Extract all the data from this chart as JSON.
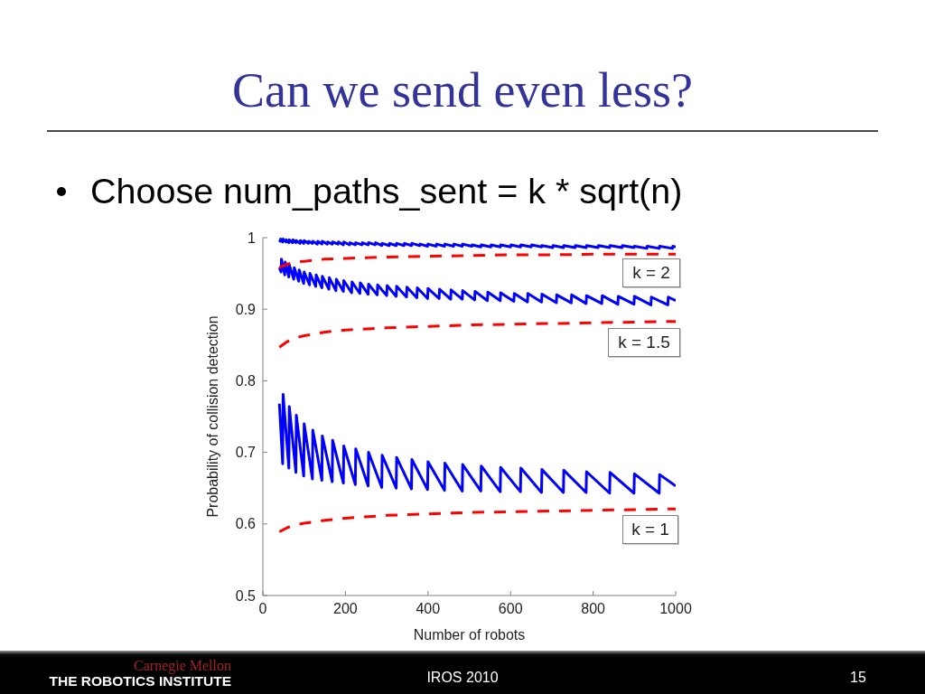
{
  "chart_data": {
    "type": "line",
    "title": "Can we send even less?",
    "subtitle": "Choose num_paths_sent = k * sqrt(n)",
    "xlabel": "Number of robots",
    "ylabel": "Probability of collision detection",
    "xlim": [
      0,
      1000
    ],
    "xticks": [
      0,
      200,
      400,
      600,
      800,
      1000
    ],
    "ylim": [
      0.5,
      1
    ],
    "yticks": [
      0.5,
      0.6,
      0.7,
      0.8,
      0.9,
      1
    ],
    "line_style": "solid",
    "series": [
      {
        "color": "#0000ff",
        "x": [
          40,
          42,
          43,
          48,
          49,
          56,
          57,
          63,
          64,
          72,
          73,
          80,
          81,
          90,
          91,
          99,
          100,
          110,
          111,
          120,
          121,
          132,
          133,
          143,
          144,
          156,
          157,
          168,
          169,
          182,
          183,
          195,
          196,
          210,
          211,
          224,
          225,
          240,
          241,
          255,
          256,
          272,
          273,
          288,
          289,
          306,
          307,
          323,
          324,
          342,
          343,
          360,
          361,
          380,
          381,
          399,
          400,
          420,
          421,
          440,
          441,
          462,
          463,
          483,
          484,
          506,
          507,
          528,
          529,
          552,
          553,
          575,
          576,
          600,
          601,
          624,
          625,
          650,
          651,
          675,
          676,
          702,
          703,
          728,
          729,
          756,
          757,
          783,
          784,
          812,
          813,
          840,
          841,
          870,
          871,
          899,
          900,
          930,
          931,
          960,
          961,
          992,
          993,
          1000
        ],
        "values": [
          0.997,
          0.995,
          0.998,
          0.994,
          0.998,
          0.994,
          0.997,
          0.993,
          0.997,
          0.993,
          0.997,
          0.993,
          0.996,
          0.992,
          0.996,
          0.992,
          0.996,
          0.992,
          0.995,
          0.992,
          0.995,
          0.991,
          0.995,
          0.991,
          0.995,
          0.991,
          0.994,
          0.991,
          0.994,
          0.991,
          0.994,
          0.99,
          0.994,
          0.99,
          0.993,
          0.99,
          0.993,
          0.99,
          0.993,
          0.99,
          0.993,
          0.99,
          0.993,
          0.989,
          0.992,
          0.989,
          0.992,
          0.989,
          0.992,
          0.989,
          0.992,
          0.989,
          0.992,
          0.989,
          0.991,
          0.988,
          0.991,
          0.988,
          0.991,
          0.988,
          0.991,
          0.988,
          0.991,
          0.988,
          0.991,
          0.988,
          0.99,
          0.987,
          0.99,
          0.987,
          0.99,
          0.987,
          0.99,
          0.987,
          0.99,
          0.987,
          0.99,
          0.987,
          0.99,
          0.987,
          0.989,
          0.986,
          0.989,
          0.986,
          0.989,
          0.986,
          0.989,
          0.986,
          0.989,
          0.986,
          0.989,
          0.986,
          0.989,
          0.986,
          0.989,
          0.986,
          0.988,
          0.985,
          0.988,
          0.985,
          0.988,
          0.985,
          0.988,
          0.987
        ]
      },
      {
        "color": "#0000ff",
        "x": [
          40,
          44,
          45,
          53,
          54,
          63,
          64,
          75,
          76,
          87,
          88,
          99,
          100,
          113,
          114,
          128,
          129,
          143,
          144,
          160,
          161,
          177,
          178,
          195,
          196,
          215,
          216,
          235,
          236,
          255,
          256,
          277,
          278,
          300,
          301,
          323,
          324,
          348,
          349,
          373,
          374,
          399,
          400,
          427,
          428,
          455,
          456,
          483,
          484,
          513,
          514,
          544,
          545,
          575,
          576,
          608,
          609,
          641,
          642,
          675,
          676,
          711,
          712,
          747,
          748,
          783,
          784,
          821,
          822,
          860,
          861,
          899,
          900,
          940,
          941,
          981,
          982,
          1000
        ],
        "values": [
          0.958,
          0.952,
          0.97,
          0.948,
          0.966,
          0.945,
          0.962,
          0.942,
          0.958,
          0.939,
          0.955,
          0.936,
          0.952,
          0.934,
          0.95,
          0.932,
          0.948,
          0.93,
          0.946,
          0.928,
          0.944,
          0.926,
          0.942,
          0.925,
          0.94,
          0.923,
          0.938,
          0.922,
          0.937,
          0.921,
          0.935,
          0.92,
          0.934,
          0.919,
          0.933,
          0.918,
          0.932,
          0.917,
          0.931,
          0.916,
          0.93,
          0.915,
          0.929,
          0.915,
          0.928,
          0.914,
          0.927,
          0.914,
          0.926,
          0.913,
          0.925,
          0.912,
          0.924,
          0.912,
          0.923,
          0.911,
          0.922,
          0.91,
          0.922,
          0.91,
          0.921,
          0.909,
          0.92,
          0.909,
          0.92,
          0.908,
          0.919,
          0.908,
          0.919,
          0.907,
          0.918,
          0.907,
          0.918,
          0.906,
          0.917,
          0.906,
          0.917,
          0.912
        ]
      },
      {
        "color": "#0000ff",
        "x": [
          40,
          48,
          49,
          63,
          64,
          80,
          81,
          99,
          100,
          120,
          121,
          143,
          144,
          168,
          169,
          195,
          196,
          224,
          225,
          255,
          256,
          288,
          289,
          323,
          324,
          360,
          361,
          399,
          400,
          440,
          441,
          483,
          484,
          528,
          529,
          575,
          576,
          624,
          625,
          675,
          676,
          728,
          729,
          783,
          784,
          840,
          841,
          899,
          900,
          960,
          961,
          1000
        ],
        "values": [
          0.768,
          0.684,
          0.781,
          0.678,
          0.764,
          0.672,
          0.752,
          0.667,
          0.74,
          0.663,
          0.731,
          0.661,
          0.723,
          0.659,
          0.717,
          0.657,
          0.709,
          0.655,
          0.705,
          0.653,
          0.7,
          0.651,
          0.696,
          0.65,
          0.693,
          0.649,
          0.69,
          0.648,
          0.687,
          0.647,
          0.685,
          0.646,
          0.683,
          0.646,
          0.681,
          0.645,
          0.679,
          0.645,
          0.678,
          0.644,
          0.676,
          0.644,
          0.675,
          0.644,
          0.673,
          0.643,
          0.672,
          0.643,
          0.67,
          0.643,
          0.669,
          0.653
        ]
      },
      {
        "color": "#ff0000",
        "line_style": "dashed",
        "x": [
          40,
          50,
          60,
          80,
          100,
          150,
          200,
          300,
          400,
          500,
          600,
          700,
          800,
          900,
          1000
        ],
        "values": [
          0.958,
          0.961,
          0.963,
          0.966,
          0.967,
          0.97,
          0.971,
          0.973,
          0.974,
          0.975,
          0.976,
          0.976,
          0.977,
          0.977,
          0.977
        ]
      },
      {
        "color": "#ff0000",
        "line_style": "dashed",
        "x": [
          40,
          50,
          60,
          80,
          100,
          150,
          200,
          300,
          400,
          500,
          600,
          700,
          800,
          900,
          1000
        ],
        "values": [
          0.847,
          0.851,
          0.855,
          0.86,
          0.863,
          0.868,
          0.871,
          0.874,
          0.876,
          0.878,
          0.879,
          0.88,
          0.881,
          0.882,
          0.883
        ]
      },
      {
        "color": "#ff0000",
        "line_style": "dashed",
        "x": [
          40,
          50,
          60,
          80,
          100,
          150,
          200,
          300,
          400,
          500,
          600,
          700,
          800,
          900,
          1000
        ],
        "values": [
          0.589,
          0.592,
          0.595,
          0.599,
          0.601,
          0.605,
          0.608,
          0.612,
          0.614,
          0.616,
          0.617,
          0.618,
          0.619,
          0.62,
          0.621
        ]
      }
    ],
    "annotations": [
      "k = 2",
      "k = 1.5",
      "k = 1",
      "Carnegie Mellon",
      "THE ROBOTICS INSTITUTE",
      "IROS 2010",
      "15"
    ]
  }
}
